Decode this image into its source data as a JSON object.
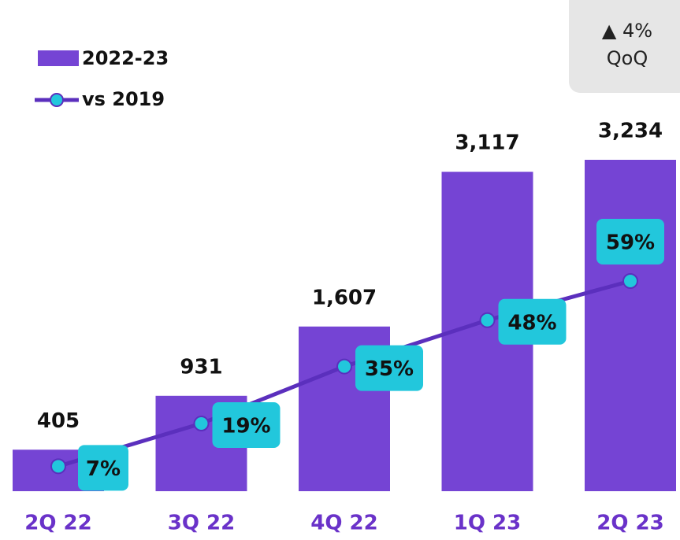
{
  "chart_data": {
    "type": "bar-line",
    "categories": [
      "2Q 22",
      "3Q 22",
      "4Q 22",
      "1Q 23",
      "2Q 23"
    ],
    "series": [
      {
        "name": "2022-23",
        "color": "#7544d4",
        "values": [
          405,
          931,
          1607,
          3117,
          3234
        ],
        "value_labels": [
          "405",
          "931",
          "1,607",
          "3,117",
          "3,234"
        ]
      },
      {
        "name": "vs 2019",
        "color": "#5b2fbd",
        "marker_color": "#22c7dc",
        "values": [
          7,
          19,
          35,
          48,
          59
        ],
        "value_labels": [
          "7%",
          "19%",
          "35%",
          "48%",
          "59%"
        ]
      }
    ],
    "annotation": {
      "line1": "▲ 4%",
      "line2": "QoQ"
    },
    "legend": "top-left"
  }
}
